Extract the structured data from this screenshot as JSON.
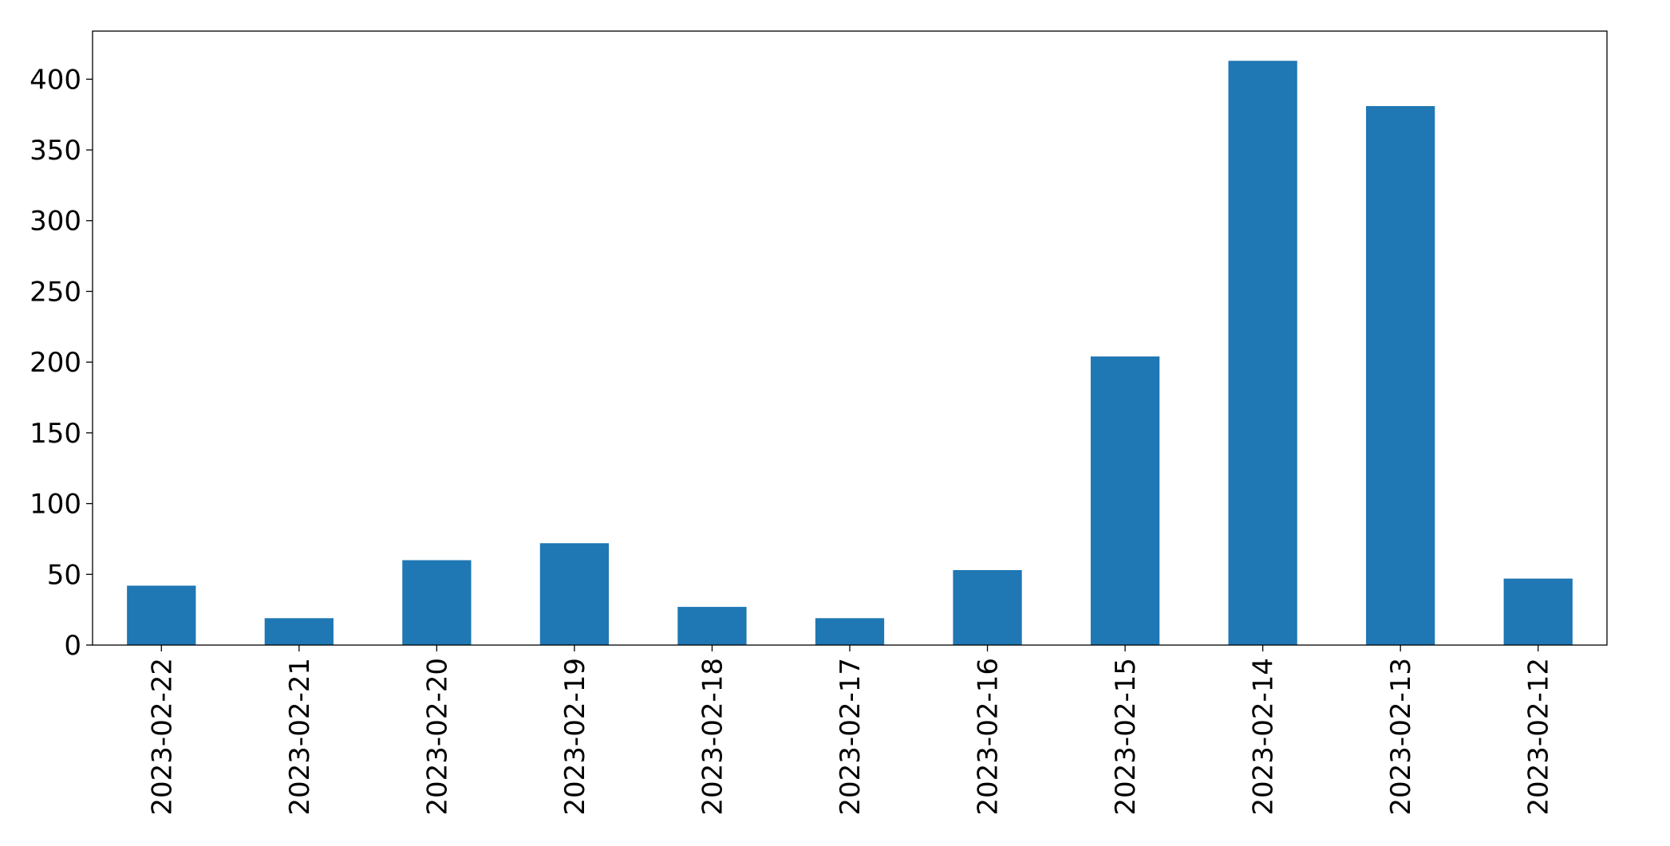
{
  "chart_data": {
    "type": "bar",
    "categories": [
      "2023-02-22",
      "2023-02-21",
      "2023-02-20",
      "2023-02-19",
      "2023-02-18",
      "2023-02-17",
      "2023-02-16",
      "2023-02-15",
      "2023-02-14",
      "2023-02-13",
      "2023-02-12"
    ],
    "values": [
      42,
      19,
      60,
      72,
      27,
      19,
      53,
      204,
      413,
      381,
      47
    ],
    "color": "#1f77b4",
    "ylim": [
      0,
      434
    ],
    "yticks": [
      0,
      50,
      100,
      150,
      200,
      250,
      300,
      350,
      400
    ],
    "grid": false
  }
}
